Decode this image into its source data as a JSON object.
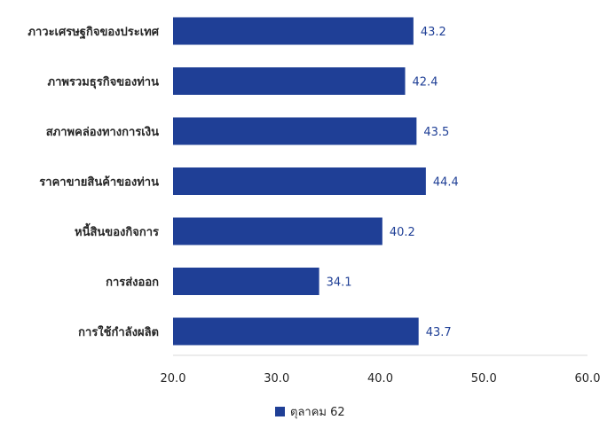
{
  "chart_data": {
    "type": "bar",
    "orientation": "horizontal",
    "categories": [
      "ภาวะเศรษฐกิจของประเทศ",
      "ภาพรวมธุรกิจของท่าน",
      "สภาพคล่องทางการเงิน",
      "ราคาขายสินค้าของท่าน",
      "หนี้สินของกิจการ",
      "การส่งออก",
      "การใช้กำลังผลิต"
    ],
    "series": [
      {
        "name": "ตุลาคม 62",
        "values": [
          43.2,
          42.4,
          43.5,
          44.4,
          40.2,
          34.1,
          43.7
        ],
        "value_labels": [
          "43.2",
          "42.4",
          "43.5",
          "44.4",
          "40.2",
          "34.1",
          "43.7"
        ]
      }
    ],
    "xlim": [
      20,
      60
    ],
    "xticks": [
      "20.0",
      "30.0",
      "40.0",
      "50.0",
      "60.0"
    ],
    "grid": false,
    "legend": "bottom-center",
    "colors": {
      "bar": "#1f3f96",
      "value_label": "#1f3f96",
      "axis": "#d9d9d9",
      "text": "#262626"
    }
  }
}
